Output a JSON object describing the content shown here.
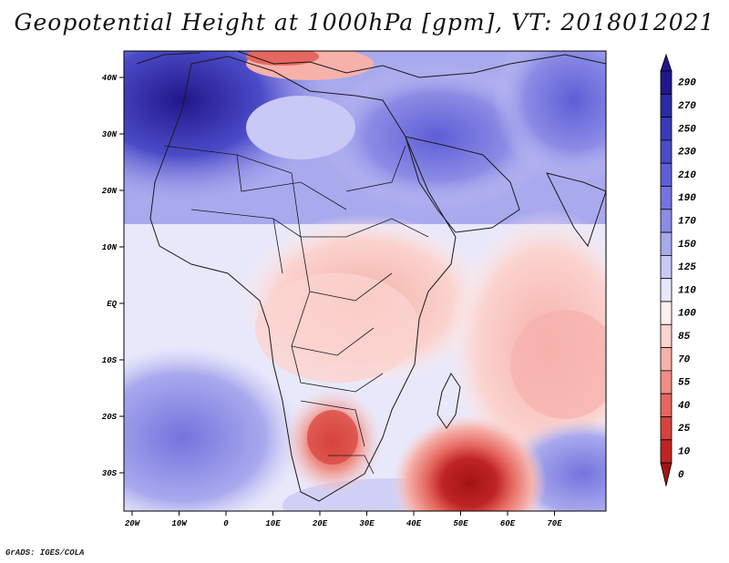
{
  "title": "Geopotential Height at 1000hPa [gpm], VT: 2018012021",
  "footer": "GrADS: IGES/COLA",
  "map": {
    "lat_labels": [
      "40N",
      "30N",
      "20N",
      "10N",
      "EQ",
      "10S",
      "20S",
      "30S"
    ],
    "lon_labels": [
      "20W",
      "10W",
      "0",
      "10E",
      "20E",
      "30E",
      "40E",
      "50E",
      "60E",
      "70E"
    ]
  },
  "colorbar": {
    "labels": [
      "290",
      "270",
      "250",
      "230",
      "210",
      "190",
      "170",
      "150",
      "125",
      "110",
      "100",
      "85",
      "70",
      "55",
      "40",
      "25",
      "10",
      "0"
    ],
    "colors": [
      "#21168a",
      "#2a2aa5",
      "#3a3ab8",
      "#4b4bc8",
      "#5e5ed6",
      "#7474de",
      "#8c8ce6",
      "#a9a9ee",
      "#c9c9f5",
      "#e8e8fb",
      "#fff0ee",
      "#fbd3cf",
      "#f6b1ab",
      "#ef8d85",
      "#e5675f",
      "#d5433c",
      "#bf2424",
      "#a31414"
    ]
  }
}
